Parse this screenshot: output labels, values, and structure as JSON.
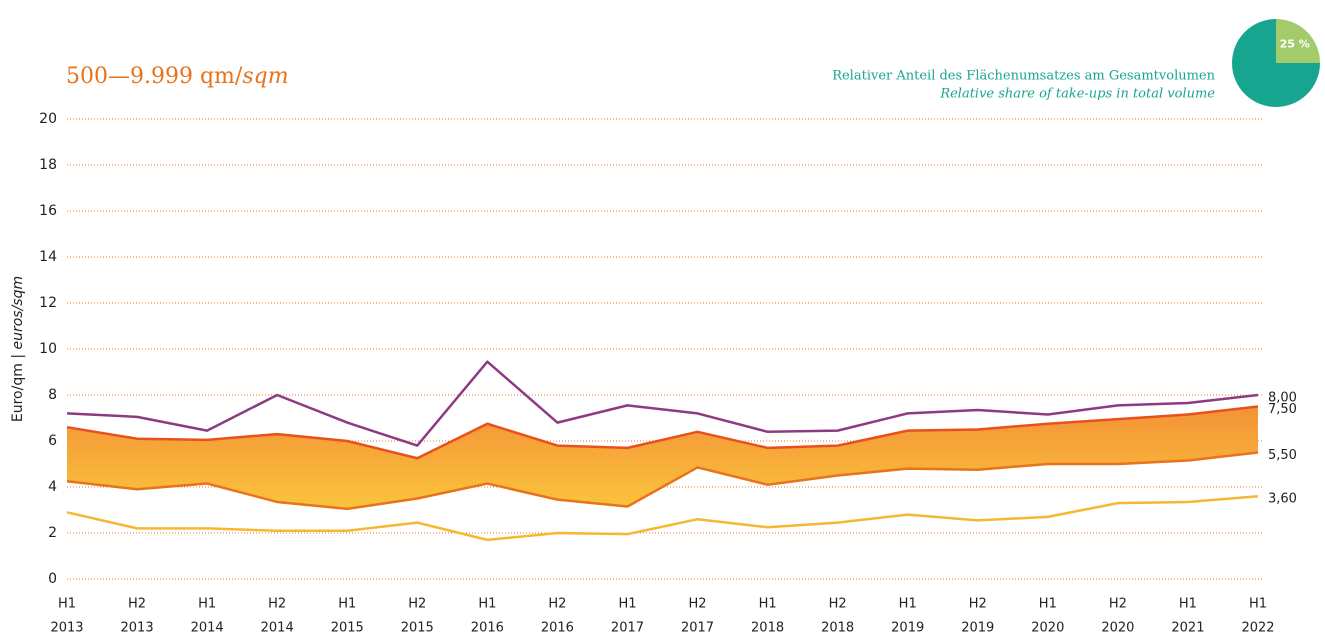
{
  "chart_data": [
    {
      "type": "line",
      "title": [
        "500—9.999 qm/",
        "sqm"
      ],
      "y_label": [
        "Euro/qm | ",
        "euros/sqm"
      ],
      "categories": [
        [
          "H1",
          "2013"
        ],
        [
          "H2",
          "2013"
        ],
        [
          "H1",
          "2014"
        ],
        [
          "H2",
          "2014"
        ],
        [
          "H1",
          "2015"
        ],
        [
          "H2",
          "2015"
        ],
        [
          "H1",
          "2016"
        ],
        [
          "H2",
          "2016"
        ],
        [
          "H1",
          "2017"
        ],
        [
          "H2",
          "2017"
        ],
        [
          "H1",
          "2018"
        ],
        [
          "H2",
          "2018"
        ],
        [
          "H1",
          "2019"
        ],
        [
          "H2",
          "2019"
        ],
        [
          "H1",
          "2020"
        ],
        [
          "H2",
          "2020"
        ],
        [
          "H1",
          "2021"
        ],
        [
          "H1",
          "2022"
        ]
      ],
      "series": [
        {
          "color": "#8e3a80",
          "values": [
            7.2,
            7.05,
            6.45,
            8.0,
            6.8,
            5.8,
            9.45,
            6.8,
            7.55,
            7.2,
            6.4,
            6.45,
            7.2,
            7.35,
            7.15,
            7.55,
            7.65,
            8.0
          ],
          "value_labels": [
            null,
            null,
            null,
            null,
            null,
            null,
            null,
            null,
            null,
            null,
            null,
            null,
            null,
            null,
            null,
            null,
            null,
            "8,00"
          ]
        },
        {
          "color": "#e8501e",
          "values": [
            6.6,
            6.1,
            6.05,
            6.3,
            6.0,
            5.25,
            6.75,
            5.8,
            5.7,
            6.4,
            5.7,
            5.8,
            6.45,
            6.5,
            6.75,
            6.95,
            7.15,
            7.5
          ],
          "value_labels": [
            null,
            null,
            null,
            null,
            null,
            null,
            null,
            null,
            null,
            null,
            null,
            null,
            null,
            null,
            null,
            null,
            null,
            "7,50"
          ]
        },
        {
          "color": "#e8731a",
          "values": [
            4.25,
            3.9,
            4.15,
            3.35,
            3.05,
            3.5,
            4.15,
            3.45,
            3.15,
            4.85,
            4.1,
            4.5,
            4.8,
            4.75,
            5.0,
            5.0,
            5.15,
            5.5
          ],
          "value_labels": [
            null,
            null,
            null,
            null,
            null,
            null,
            null,
            null,
            null,
            null,
            null,
            null,
            null,
            null,
            null,
            null,
            null,
            "5,50"
          ]
        },
        {
          "color": "#f7b733",
          "values": [
            2.9,
            2.2,
            2.2,
            2.1,
            2.1,
            2.45,
            1.7,
            2.0,
            1.95,
            2.6,
            2.25,
            2.45,
            2.8,
            2.55,
            2.7,
            3.3,
            3.35,
            3.6
          ],
          "value_labels": [
            null,
            null,
            null,
            null,
            null,
            null,
            null,
            null,
            null,
            null,
            null,
            null,
            null,
            null,
            null,
            null,
            null,
            "3,60"
          ]
        }
      ],
      "band_colors": [
        "#f39237",
        "#fbc43c"
      ],
      "ylim": [
        0,
        20
      ],
      "yticks": [
        0,
        2,
        4,
        6,
        8,
        10,
        12,
        14,
        16,
        18,
        20
      ],
      "grid": true,
      "grid_color": "#e07a2e"
    },
    {
      "type": "pie",
      "title": "Relativer Anteil des Flächenumsatzes am Gesamtvolumen",
      "subtitle": "Relative share of take-ups in total volume",
      "values": [
        25,
        75
      ],
      "value_labels": [
        "25 %",
        null
      ],
      "colors": [
        "#a3cb6a",
        "#17a58f"
      ]
    }
  ]
}
